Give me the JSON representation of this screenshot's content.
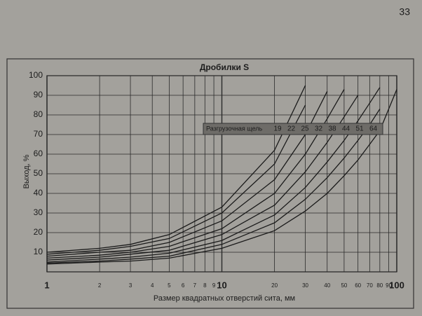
{
  "page_number": "33",
  "chart_data": {
    "type": "line",
    "title": "Дробилки S",
    "x_label": "Размер квадратных отверстий сита, мм",
    "y_label": "Выход, %",
    "legend_title": "Разгрузочная щель",
    "x": [
      1,
      2,
      3,
      5,
      10,
      20,
      30,
      40,
      50,
      60,
      70,
      80,
      100
    ],
    "xlim": [
      1,
      100
    ],
    "ylim": [
      0,
      100
    ],
    "x_log": true,
    "grid": true,
    "xticks": [
      1,
      2,
      3,
      4,
      5,
      6,
      7,
      8,
      9,
      10,
      20,
      30,
      40,
      50,
      60,
      70,
      80,
      90,
      100
    ],
    "yticks": [
      10,
      20,
      30,
      40,
      50,
      60,
      70,
      80,
      90,
      100
    ],
    "series": [
      {
        "name": "19",
        "color": "#1a1a1a",
        "values": [
          10,
          12,
          14,
          19,
          33,
          62,
          95,
          null,
          null,
          null,
          null,
          null,
          null
        ]
      },
      {
        "name": "22",
        "color": "#1a1a1a",
        "values": [
          9,
          11,
          13,
          17,
          30,
          55,
          85,
          null,
          null,
          null,
          null,
          null,
          null
        ]
      },
      {
        "name": "25",
        "color": "#1a1a1a",
        "values": [
          8,
          10,
          11,
          15,
          26,
          47,
          70,
          92,
          null,
          null,
          null,
          null,
          null
        ]
      },
      {
        "name": "32",
        "color": "#1a1a1a",
        "values": [
          7,
          8.5,
          10,
          13,
          22,
          40,
          60,
          78,
          93,
          null,
          null,
          null,
          null
        ]
      },
      {
        "name": "38",
        "color": "#1a1a1a",
        "values": [
          6,
          7.5,
          9,
          11,
          19,
          34,
          51,
          66,
          79,
          90,
          null,
          null,
          null
        ]
      },
      {
        "name": "44",
        "color": "#1a1a1a",
        "values": [
          5,
          6.5,
          7.5,
          9.5,
          16,
          29,
          43,
          56,
          67,
          77,
          86,
          94,
          null
        ]
      },
      {
        "name": "51",
        "color": "#1a1a1a",
        "values": [
          4.5,
          5.5,
          6.5,
          8,
          14,
          25,
          37,
          48,
          58,
          67,
          75,
          83,
          null
        ]
      },
      {
        "name": "64",
        "color": "#1a1a1a",
        "values": [
          4,
          5,
          5.5,
          7,
          12,
          21,
          31,
          40,
          49,
          57,
          65,
          72,
          93
        ]
      }
    ]
  }
}
